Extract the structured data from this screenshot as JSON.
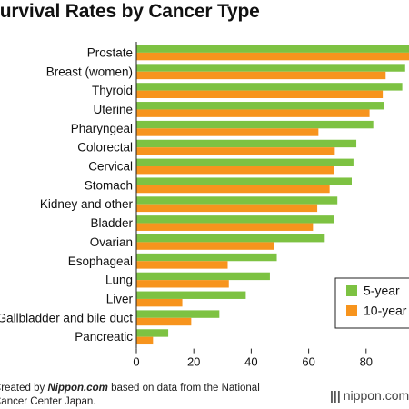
{
  "chart_data": {
    "type": "bar",
    "orientation": "horizontal",
    "title": "Survival Rates by Cancer Type",
    "categories": [
      "Prostate",
      "Breast (women)",
      "Thyroid",
      "Uterine",
      "Pharyngeal",
      "Colorectal",
      "Cervical",
      "Stomach",
      "Kidney and other",
      "Bladder",
      "Ovarian",
      "Esophageal",
      "Lung",
      "Liver",
      "Gallbladder and bile duct",
      "Pancreatic"
    ],
    "series": [
      {
        "name": "5-year",
        "color": "#7dc242",
        "values": [
          100,
          93.6,
          92.6,
          86.3,
          82.5,
          76.6,
          75.6,
          75.0,
          70.0,
          68.8,
          65.6,
          48.9,
          46.5,
          38.1,
          28.9,
          11.1
        ]
      },
      {
        "name": "10-year",
        "color": "#f7941d",
        "values": [
          97.8,
          86.8,
          85.8,
          81.2,
          63.4,
          69.1,
          68.8,
          67.3,
          63.0,
          61.5,
          48.0,
          31.8,
          32.2,
          16.0,
          19.1,
          5.8
        ]
      }
    ],
    "xlim": [
      0,
      100
    ],
    "xticks": [
      0,
      20,
      40,
      60,
      80
    ],
    "legend": "bottom-right",
    "grid": false
  },
  "source": {
    "prefix": "Created by ",
    "brand": "Nippon.com",
    "suffix": " based on data from the National Cancer Center Japan."
  },
  "logo": {
    "mark": "|||",
    "text": "nippon.com"
  }
}
